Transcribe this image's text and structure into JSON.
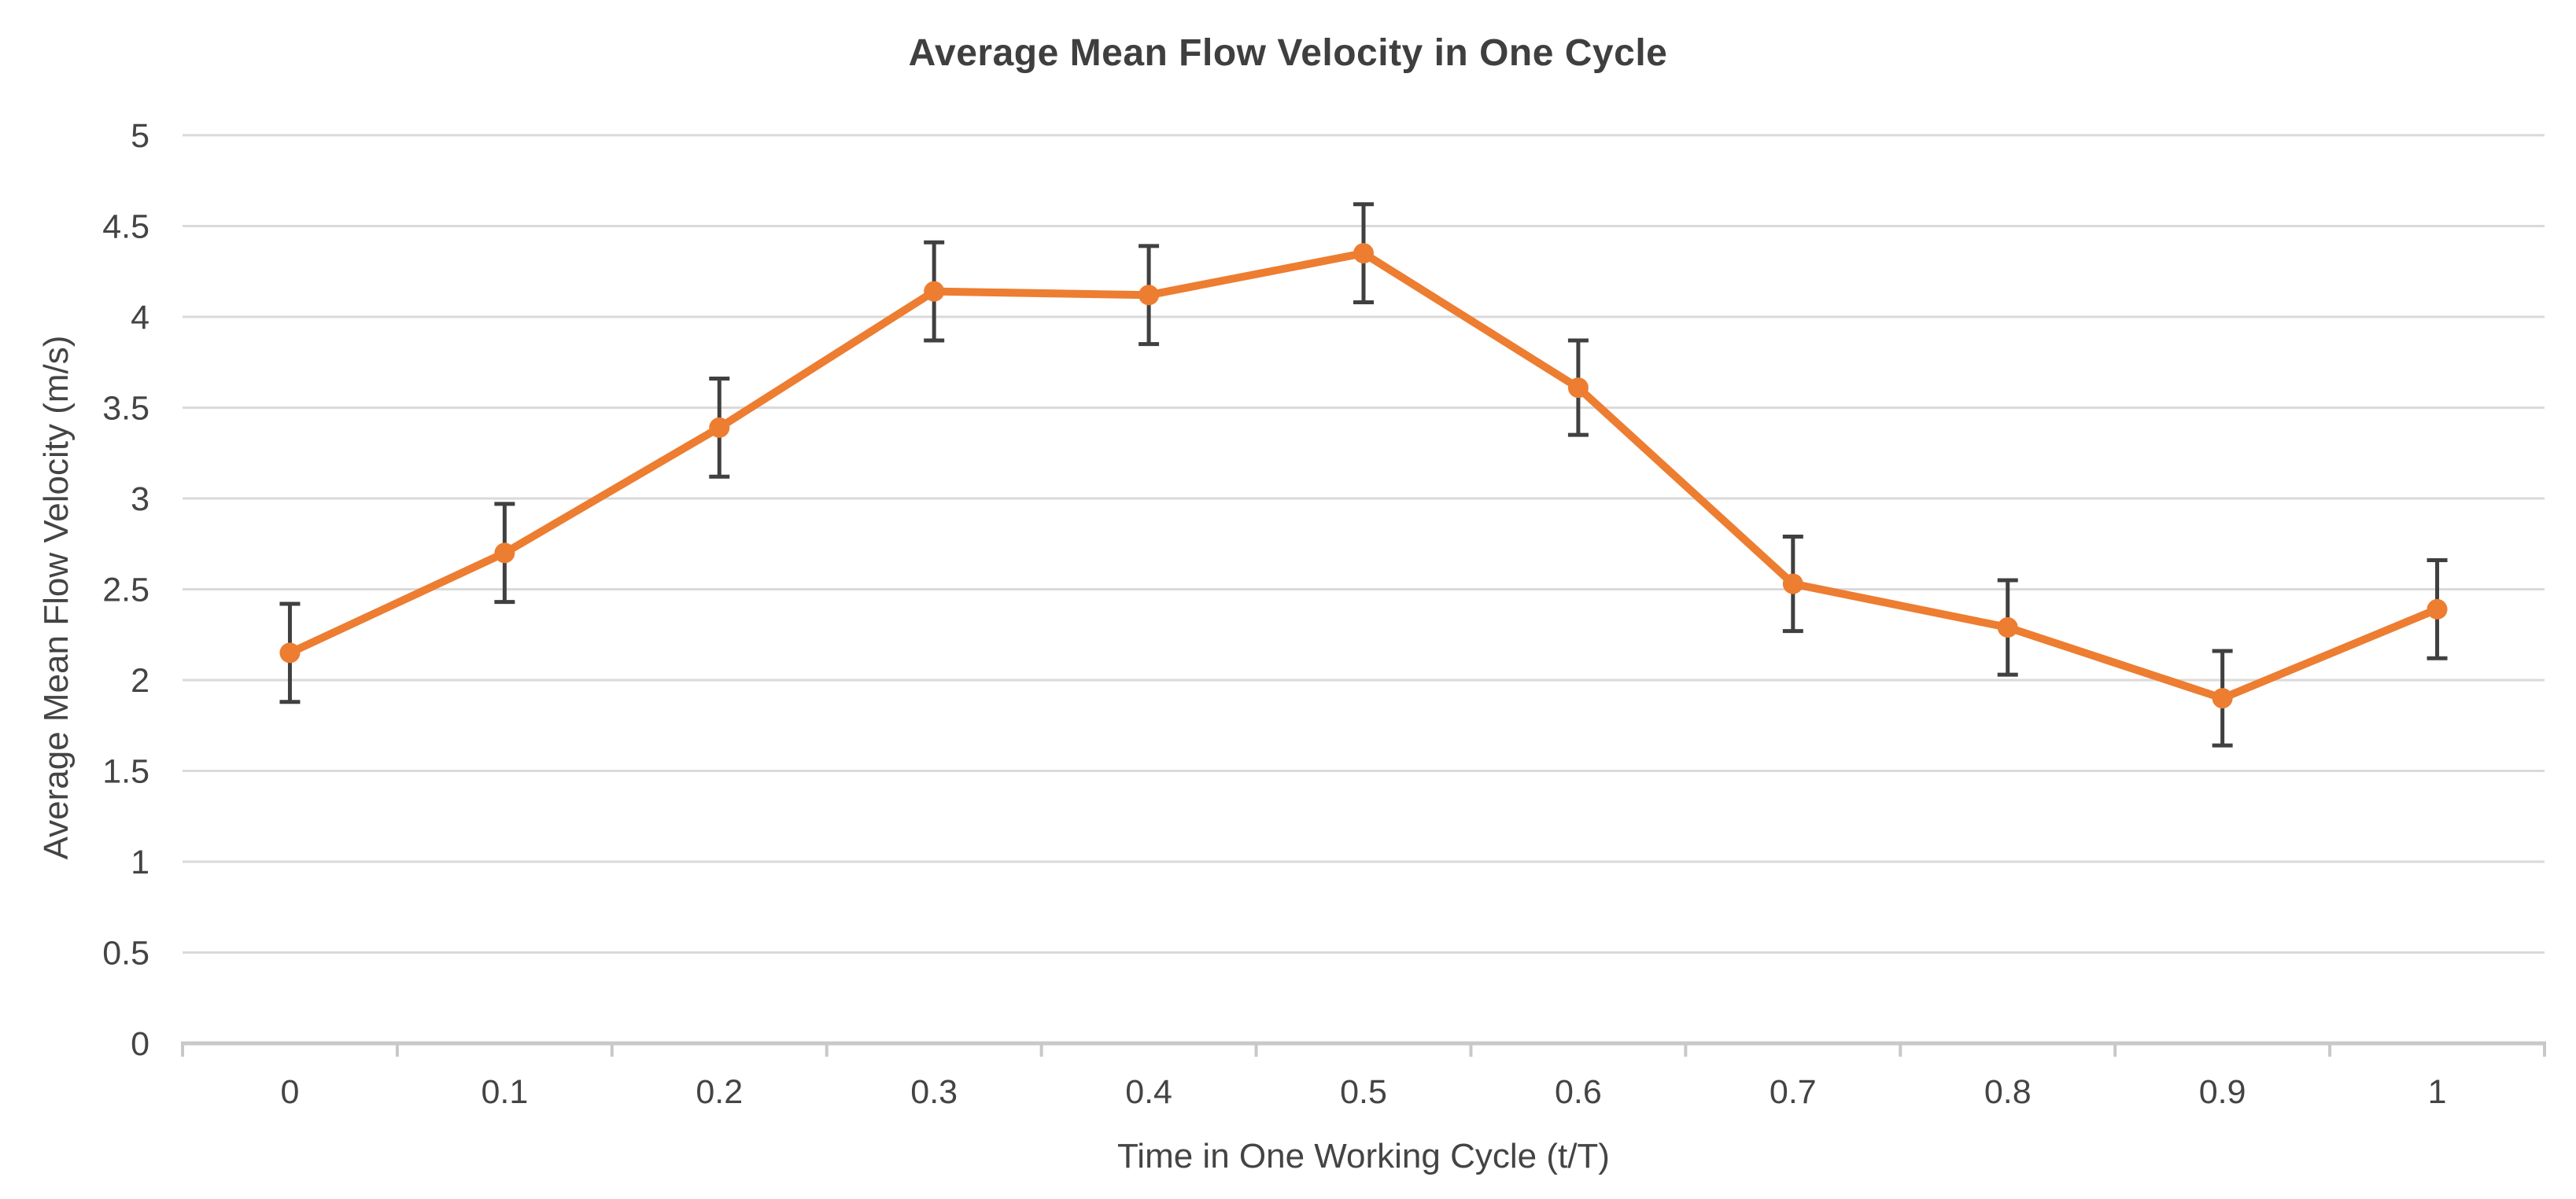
{
  "chart_data": {
    "type": "line",
    "title": "Average Mean Flow Velocity in One Cycle",
    "xlabel": "Time in One Working Cycle (t/T)",
    "ylabel": "Average Mean Flow Velocity (m/s)",
    "categories": [
      "0",
      "0.1",
      "0.2",
      "0.3",
      "0.4",
      "0.5",
      "0.6",
      "0.7",
      "0.8",
      "0.9",
      "1"
    ],
    "x": [
      0,
      0.1,
      0.2,
      0.3,
      0.4,
      0.5,
      0.6,
      0.7,
      0.8,
      0.9,
      1
    ],
    "series": [
      {
        "name": "Average Mean Flow Velocity",
        "values": [
          2.15,
          2.7,
          3.39,
          4.14,
          4.12,
          4.35,
          3.61,
          2.53,
          2.29,
          1.9,
          2.39
        ],
        "errors": [
          0.27,
          0.27,
          0.27,
          0.27,
          0.27,
          0.27,
          0.26,
          0.26,
          0.26,
          0.26,
          0.27
        ],
        "color": "#ED7D31",
        "marker": "circle"
      }
    ],
    "ylim": [
      0,
      5
    ],
    "yticks": [
      0,
      0.5,
      1,
      1.5,
      2,
      2.5,
      3,
      3.5,
      4,
      4.5,
      5
    ],
    "ytick_labels": [
      "0",
      "0.5",
      "1",
      "1.5",
      "2",
      "2.5",
      "3",
      "3.5",
      "4",
      "4.5",
      "5"
    ],
    "grid": "horizontal",
    "legend": "none",
    "error_bar_style": "symmetric-with-caps",
    "colors": {
      "series": "#ED7D31",
      "errorbar": "#404040",
      "gridline": "#DADADA",
      "axisline": "#C8C8C8",
      "tick_text": "#444444",
      "title_text": "#3F3F3F"
    }
  }
}
